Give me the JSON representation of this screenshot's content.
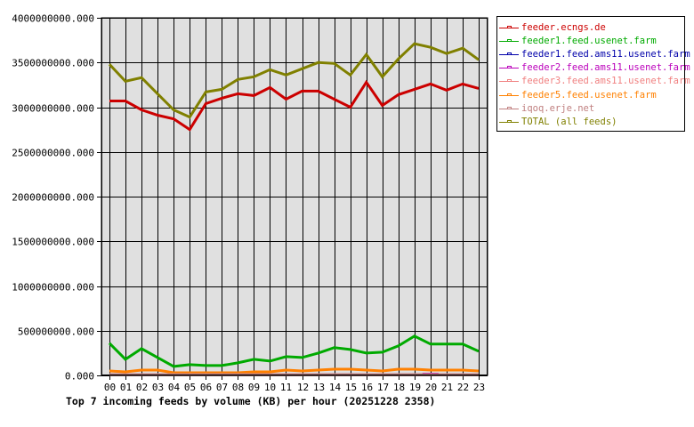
{
  "chart_data": {
    "type": "line",
    "title": "Top 7 incoming feeds by volume (KB) per hour (20251228 2358)",
    "xlabel": "",
    "ylabel": "",
    "ylim": [
      0,
      4000000000
    ],
    "grid": true,
    "legend_position": "right",
    "categories": [
      "00",
      "01",
      "02",
      "03",
      "04",
      "05",
      "06",
      "07",
      "08",
      "09",
      "10",
      "11",
      "12",
      "13",
      "14",
      "15",
      "16",
      "17",
      "18",
      "19",
      "20",
      "21",
      "22",
      "23"
    ],
    "y_ticks": [
      "0.000",
      "500000000.000",
      "1000000000.000",
      "1500000000.000",
      "2000000000.000",
      "2500000000.000",
      "3000000000.000",
      "3500000000.000",
      "4000000000.000"
    ],
    "series": [
      {
        "name": "feeder.ecngs.de",
        "color": "#cc0000",
        "values": [
          3070000000,
          3070000000,
          2970000000,
          2910000000,
          2870000000,
          2750000000,
          3040000000,
          3100000000,
          3150000000,
          3130000000,
          3220000000,
          3090000000,
          3180000000,
          3180000000,
          3090000000,
          3000000000,
          3280000000,
          3020000000,
          3140000000,
          3200000000,
          3260000000,
          3190000000,
          3260000000,
          3210000000
        ]
      },
      {
        "name": "feeder1.feed.usenet.farm",
        "color": "#00aa00",
        "values": [
          360000000,
          180000000,
          300000000,
          200000000,
          100000000,
          120000000,
          110000000,
          110000000,
          140000000,
          180000000,
          160000000,
          210000000,
          200000000,
          250000000,
          310000000,
          290000000,
          250000000,
          260000000,
          330000000,
          440000000,
          350000000,
          350000000,
          350000000,
          270000000
        ]
      },
      {
        "name": "feeder1.feed.ams11.usenet.farm",
        "color": "#0000aa",
        "values": [
          0,
          0,
          0,
          0,
          0,
          0,
          0,
          0,
          0,
          0,
          0,
          0,
          0,
          0,
          0,
          0,
          0,
          0,
          0,
          0,
          0,
          0,
          0,
          0
        ]
      },
      {
        "name": "feeder2.feed.ams11.usenet.farm",
        "color": "#bb00bb",
        "values": [
          0,
          0,
          0,
          0,
          0,
          0,
          0,
          0,
          0,
          0,
          0,
          0,
          0,
          0,
          0,
          0,
          0,
          0,
          0,
          20000000,
          20000000,
          0,
          0,
          0
        ]
      },
      {
        "name": "feeder3.feed.ams11.usenet.farm",
        "color": "#f08080",
        "values": [
          0,
          0,
          0,
          0,
          0,
          0,
          0,
          0,
          0,
          0,
          0,
          0,
          0,
          0,
          0,
          0,
          0,
          0,
          0,
          0,
          0,
          0,
          0,
          0
        ]
      },
      {
        "name": "feeder5.feed.usenet.farm",
        "color": "#ff8000",
        "values": [
          50000000,
          40000000,
          60000000,
          60000000,
          30000000,
          30000000,
          30000000,
          30000000,
          30000000,
          40000000,
          40000000,
          60000000,
          50000000,
          60000000,
          70000000,
          70000000,
          60000000,
          50000000,
          70000000,
          70000000,
          60000000,
          60000000,
          60000000,
          50000000
        ]
      },
      {
        "name": "iqoq.erje.net",
        "color": "#c08080",
        "values": [
          10000000,
          10000000,
          10000000,
          10000000,
          10000000,
          10000000,
          10000000,
          10000000,
          10000000,
          10000000,
          10000000,
          10000000,
          10000000,
          10000000,
          10000000,
          10000000,
          10000000,
          10000000,
          10000000,
          10000000,
          10000000,
          10000000,
          10000000,
          10000000
        ]
      },
      {
        "name": "TOTAL (all feeds)",
        "color": "#808000",
        "values": [
          3480000000,
          3290000000,
          3330000000,
          3150000000,
          2970000000,
          2890000000,
          3170000000,
          3200000000,
          3310000000,
          3340000000,
          3420000000,
          3360000000,
          3430000000,
          3500000000,
          3490000000,
          3360000000,
          3590000000,
          3340000000,
          3540000000,
          3710000000,
          3670000000,
          3600000000,
          3660000000,
          3530000000
        ]
      }
    ]
  },
  "colors": {
    "plot_background": "#e0e0e0",
    "grid": "#000000"
  }
}
